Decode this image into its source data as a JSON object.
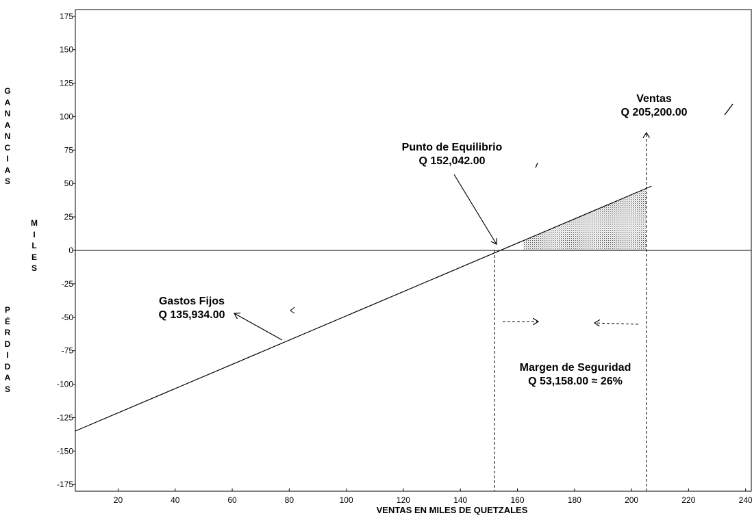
{
  "chart_data": {
    "type": "line",
    "xlabel": "VENTAS EN MILES DE QUETZALES",
    "ylabel_top": "GANANCIAS",
    "ylabel_middle": "MILES",
    "ylabel_bottom": "PÉRDIDAS",
    "xlim": [
      5,
      242
    ],
    "ylim": [
      -180,
      180
    ],
    "x_ticks": [
      20,
      40,
      60,
      80,
      100,
      120,
      140,
      160,
      180,
      200,
      220,
      240
    ],
    "y_ticks": [
      175,
      150,
      125,
      100,
      75,
      50,
      25,
      0,
      -25,
      -50,
      -75,
      -100,
      -125,
      -150,
      -175
    ],
    "series": [
      {
        "x": [
          5,
          207
        ],
        "y": [
          -135,
          48
        ]
      }
    ],
    "break_even_x": 152,
    "sales_x": 205.2,
    "shaded_region": {
      "x": [
        162,
        205
      ],
      "note": "profit area"
    },
    "annotations": {
      "break_even": {
        "line1": "Punto de Equilibrio",
        "line2": "Q 152,042.00"
      },
      "sales": {
        "line1": "Ventas",
        "line2": "Q 205,200.00"
      },
      "fixed_costs": {
        "line1": "Gastos Fijos",
        "line2": "Q 135,934.00"
      },
      "margin": {
        "line1": "Margen de Seguridad",
        "line2": "Q 53,158.00 ≈ 26%"
      }
    },
    "grid": false
  }
}
